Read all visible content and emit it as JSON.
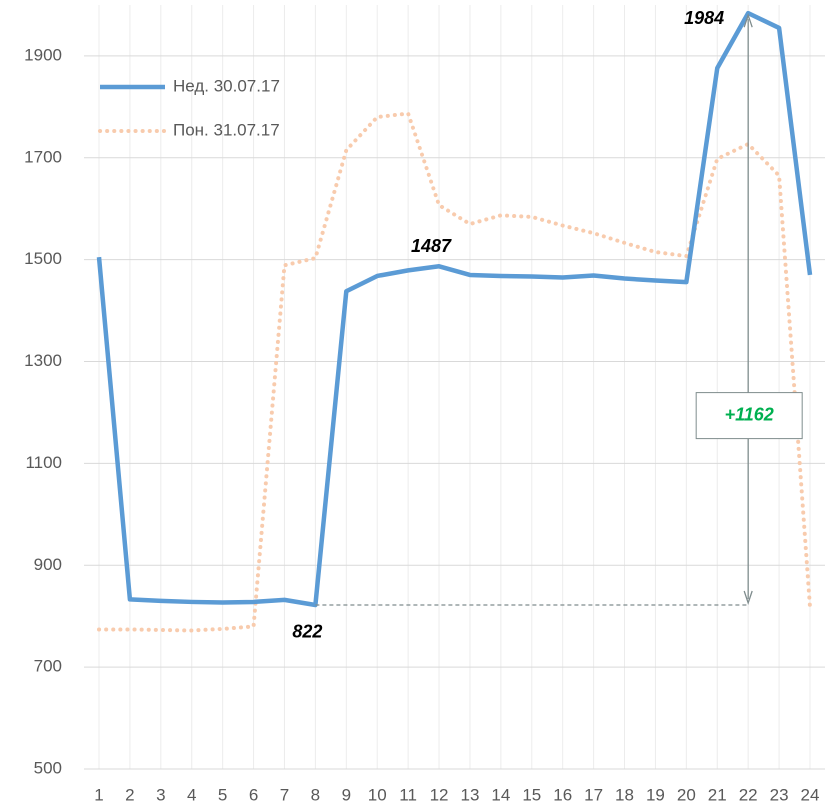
{
  "chart_data": {
    "type": "line",
    "categories": [
      "1",
      "2",
      "3",
      "4",
      "5",
      "6",
      "7",
      "8",
      "9",
      "10",
      "11",
      "12",
      "13",
      "14",
      "15",
      "16",
      "17",
      "18",
      "19",
      "20",
      "21",
      "22",
      "23",
      "24"
    ],
    "series": [
      {
        "name": "Нед. 30.07.17",
        "color": "#5b9bd5",
        "style": "solid",
        "values": [
          1505,
          833,
          830,
          828,
          827,
          828,
          832,
          822,
          1438,
          1468,
          1479,
          1487,
          1470,
          1468,
          1467,
          1465,
          1469,
          1463,
          1459,
          1456,
          1876,
          1984,
          1955,
          1470
        ]
      },
      {
        "name": "Пон. 31.07.17",
        "color": "#f8cbad",
        "style": "dotted",
        "values": [
          774,
          774,
          773,
          772,
          775,
          780,
          1489,
          1503,
          1715,
          1780,
          1787,
          1607,
          1570,
          1587,
          1584,
          1567,
          1552,
          1533,
          1515,
          1507,
          1698,
          1727,
          1665,
          818
        ]
      }
    ],
    "annotations": [
      "1984",
      "1487",
      "822",
      "+1162"
    ],
    "ylim": [
      500,
      2000
    ],
    "yticks": [
      500,
      700,
      900,
      1100,
      1300,
      1500,
      1700,
      1900
    ],
    "grid": true,
    "legend": "upper left"
  }
}
